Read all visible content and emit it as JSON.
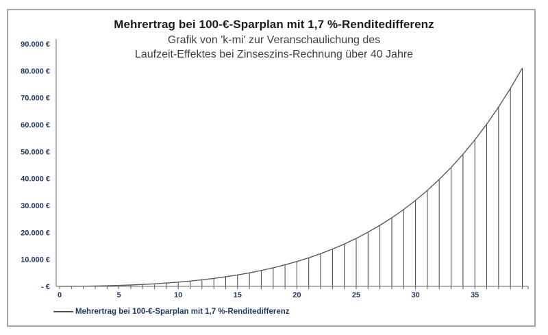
{
  "window": {
    "background": "#ffffff",
    "frame_border_color": "#a6a6a6"
  },
  "chart_data": {
    "type": "line",
    "title": "Mehrertrag bei 100-€-Sparplan mit 1,7 %-Renditedifferenz",
    "subtitle_lines": [
      "Grafik von 'k-mi' zur Veranschaulichung des",
      "Laufzeit-Effektes bei Zinseszins-Rechnung über 40 Jahre"
    ],
    "xlabel": "",
    "ylabel": "",
    "x": [
      0,
      1,
      2,
      3,
      4,
      5,
      6,
      7,
      8,
      9,
      10,
      11,
      12,
      13,
      14,
      15,
      16,
      17,
      18,
      19,
      20,
      21,
      22,
      23,
      24,
      25,
      26,
      27,
      28,
      29,
      30,
      31,
      32,
      33,
      34,
      35,
      36,
      37,
      38,
      39
    ],
    "series": [
      {
        "name": "Mehrertrag bei 100-€-Sparplan mit 1,7 %-Renditedifferenz",
        "values": [
          0,
          20,
          60,
          130,
          220,
          350,
          510,
          710,
          950,
          1240,
          1580,
          1970,
          2430,
          2960,
          3560,
          4250,
          5020,
          5900,
          6890,
          7990,
          9220,
          10600,
          12130,
          13830,
          15720,
          17800,
          20110,
          22650,
          25440,
          28520,
          31900,
          35610,
          39680,
          44140,
          49010,
          54350,
          60180,
          66550,
          73480,
          81000
        ]
      }
    ],
    "ylim": [
      0,
      90000
    ],
    "y_tick_step": 10000,
    "y_tick_labels": [
      "- €",
      "10.000 €",
      "20.000 €",
      "30.000 €",
      "40.000 €",
      "50.000 €",
      "60.000 €",
      "70.000 €",
      "80.000 €",
      "90.000 €"
    ],
    "x_tick_positions": [
      0,
      5,
      10,
      15,
      20,
      25,
      30,
      35
    ],
    "x_tick_labels": [
      "0",
      "5",
      "10",
      "15",
      "20",
      "25",
      "30",
      "35"
    ],
    "grid": false,
    "drop_lines": true,
    "legend_position": "bottom-left",
    "colors": {
      "line": "#595959",
      "drop_line": "#404040",
      "axis": "#808080",
      "tick": "#595959",
      "tick_label": "#1f3864",
      "title": "#1a1a24",
      "subtitle": "#3f3f3f"
    }
  },
  "legend": {
    "label": "Mehrertrag bei 100-€-Sparplan mit 1,7 %-Renditedifferenz"
  }
}
